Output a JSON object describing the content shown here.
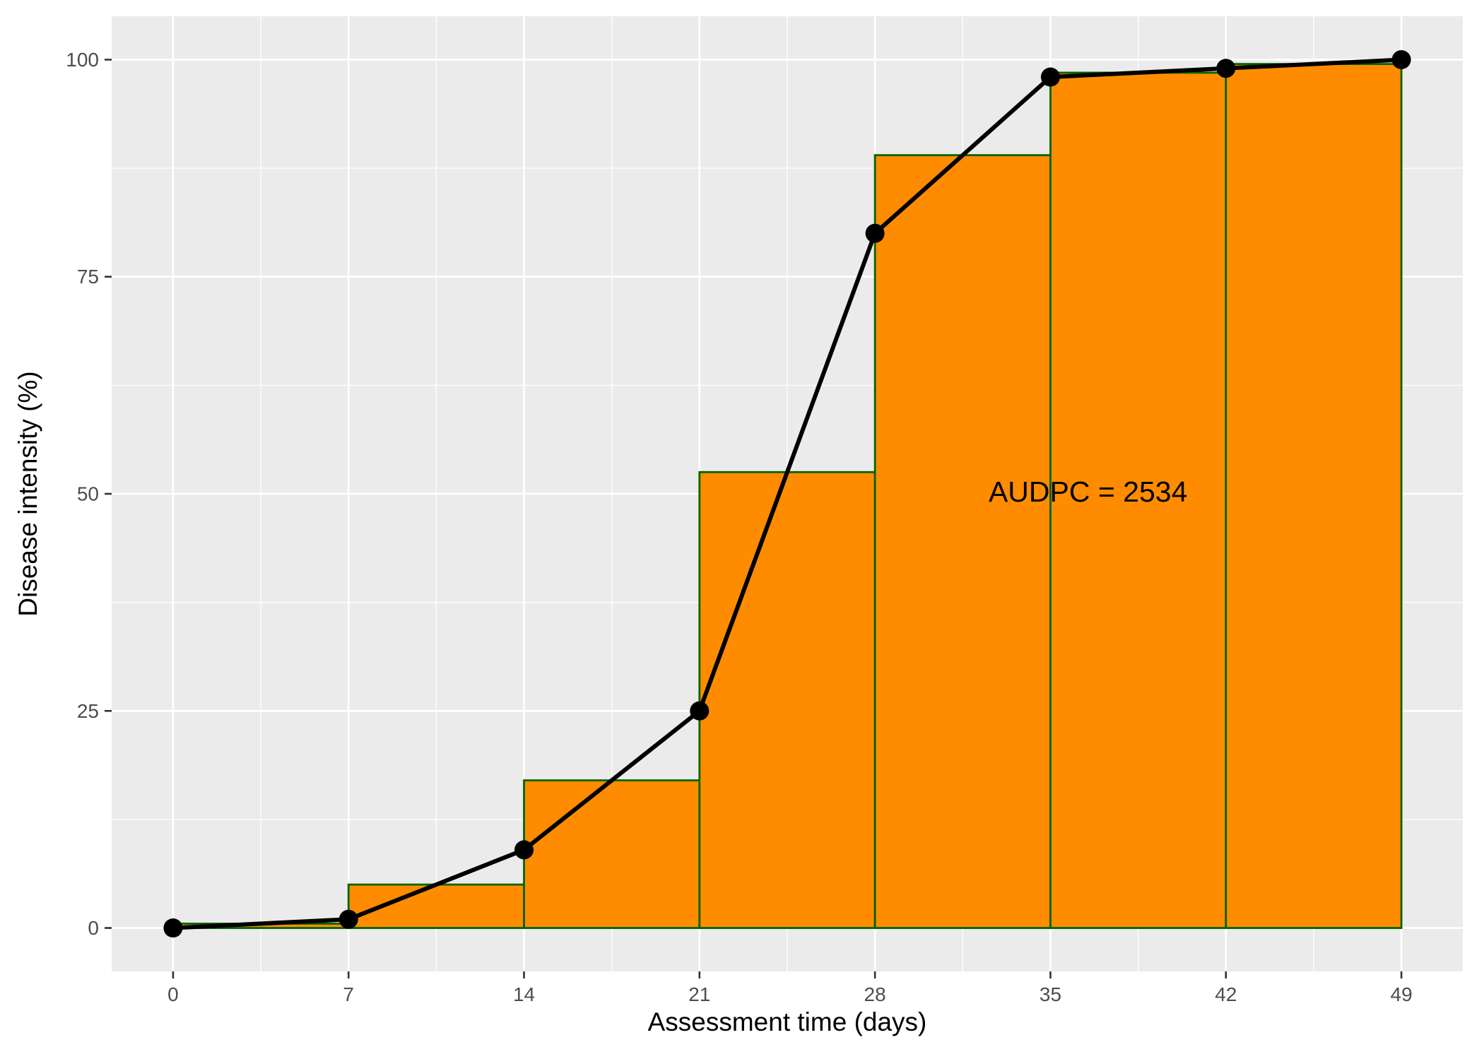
{
  "chart_data": {
    "type": "line",
    "title": "",
    "xlabel": "Assessment time (days)",
    "ylabel": "Disease intensity (%)",
    "xlim": [
      -2.45,
      51.45
    ],
    "ylim": [
      -5,
      105
    ],
    "x_ticks": [
      0,
      7,
      14,
      21,
      28,
      35,
      42,
      49
    ],
    "x_tick_labels": [
      "0",
      "7",
      "14",
      "21",
      "28",
      "35",
      "42",
      "49"
    ],
    "y_ticks": [
      0,
      25,
      50,
      75,
      100
    ],
    "y_tick_labels": [
      "0",
      "25",
      "50",
      "75",
      "100"
    ],
    "grid": true,
    "legend": "none",
    "series": [
      {
        "x": [
          0,
          7,
          14,
          21,
          28,
          35,
          42,
          49
        ],
        "values": [
          0,
          1,
          9,
          25,
          80,
          98,
          99,
          100
        ]
      }
    ],
    "bars": {
      "type": "bar",
      "x_start": [
        0,
        7,
        14,
        21,
        28,
        35,
        42
      ],
      "x_end": [
        7,
        14,
        21,
        28,
        35,
        42,
        49
      ],
      "values": [
        0.5,
        5,
        17,
        52.5,
        89,
        98.5,
        99.5
      ]
    },
    "annotation": {
      "text": "AUDPC = 2534",
      "x": 36.5,
      "y": 50
    },
    "colors": {
      "panel": "#ebebeb",
      "grid": "#ffffff",
      "bar_fill": "#ff8c00",
      "bar_border": "#006400",
      "line": "#000000"
    }
  }
}
